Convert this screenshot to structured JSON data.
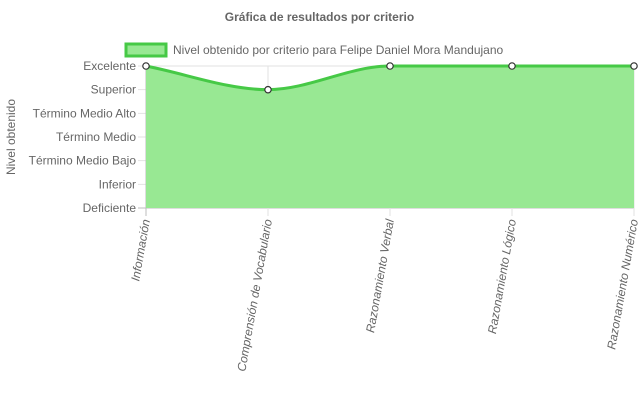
{
  "chart_data": {
    "type": "area",
    "title": "Gráfica de resultados por criterio",
    "ylabel": "Nivel obtenido",
    "xlabel": "",
    "categories": [
      "Información",
      "Comprensión de Vocabulario",
      "Razonamiento Verbal",
      "Razonamiento Lógico",
      "Razonamiento Numérico"
    ],
    "y_levels": [
      "Deficiente",
      "Inferior",
      "Término Medio Bajo",
      "Término Medio",
      "Término Medio Alto",
      "Superior",
      "Excelente"
    ],
    "ylim": [
      0,
      6
    ],
    "series": [
      {
        "name": "Nivel obtenido por criterio para Felipe Daniel Mora Mandujano",
        "values": [
          6,
          5,
          6,
          6,
          6
        ],
        "line_color": "#46c946",
        "fill_color": "#98e893"
      }
    ],
    "legend_position": "top",
    "grid": true
  }
}
